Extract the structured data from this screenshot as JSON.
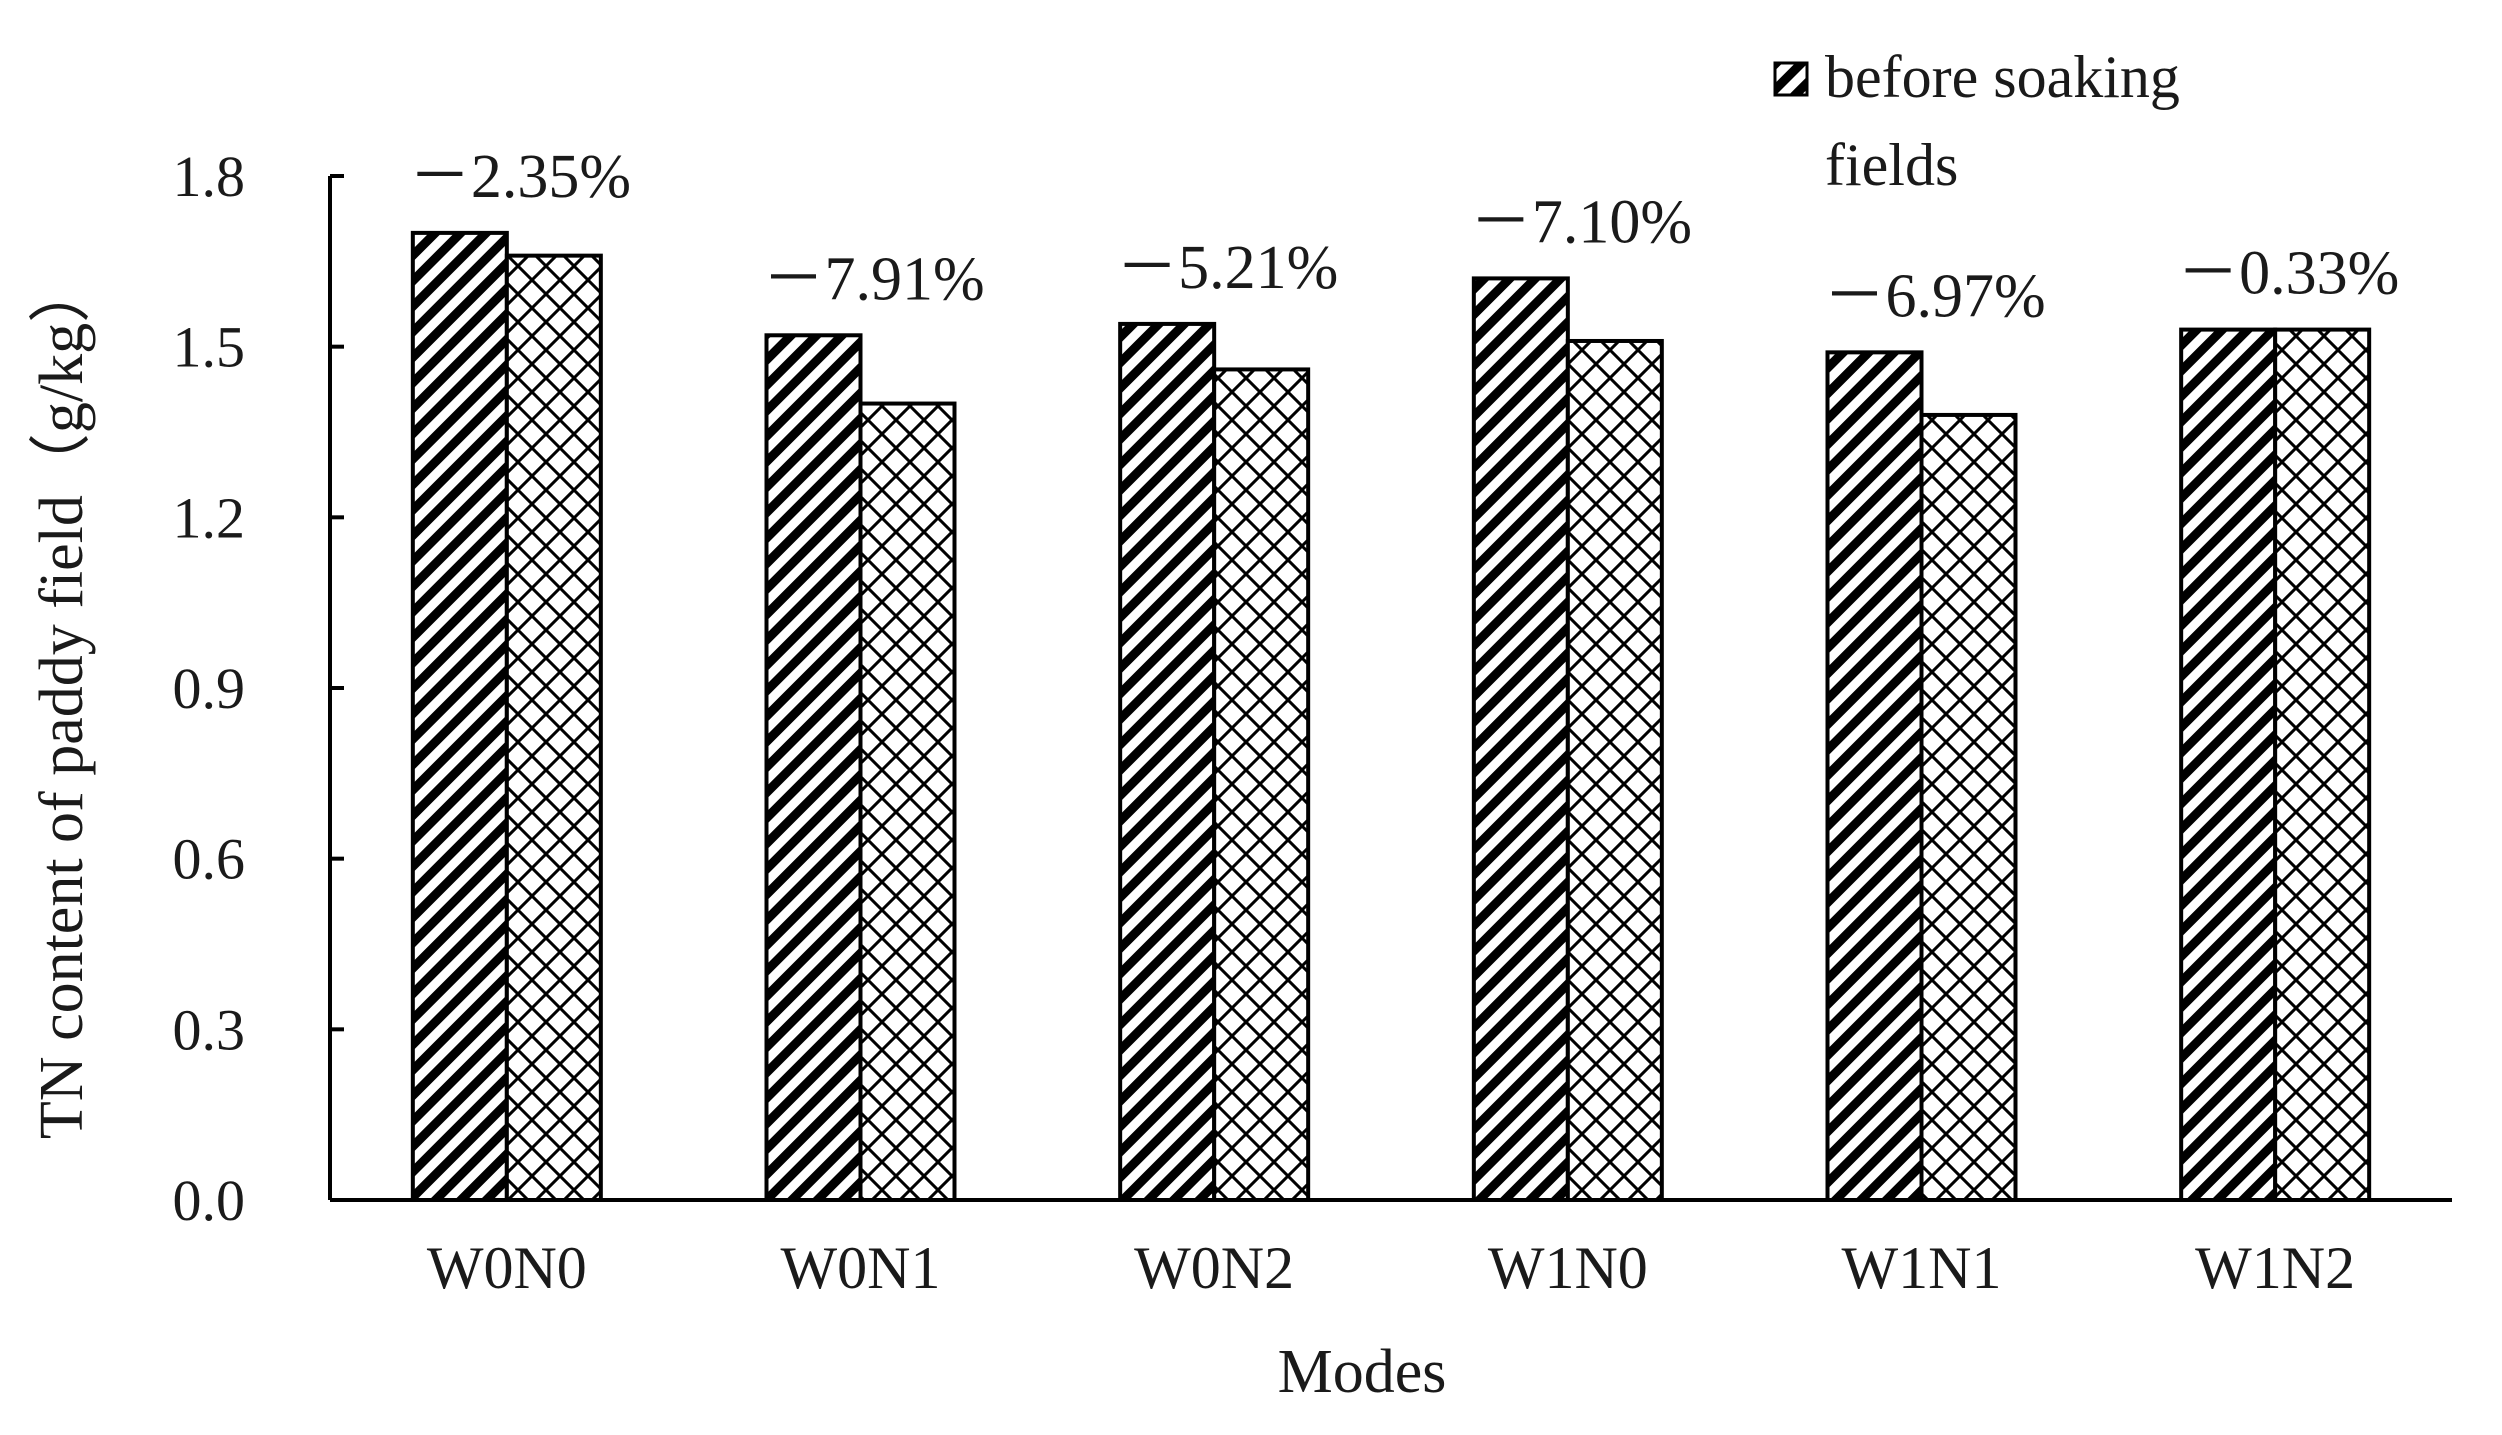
{
  "chart_data": {
    "type": "bar",
    "title": "",
    "xlabel": "Modes",
    "ylabel": "TN content of paddy field（g/kg）",
    "categories": [
      "W0N0",
      "W0N1",
      "W0N2",
      "W1N0",
      "W1N1",
      "W1N2"
    ],
    "series": [
      {
        "name": "before soaking fields",
        "values": [
          1.7,
          1.52,
          1.54,
          1.62,
          1.49,
          1.53
        ],
        "pattern": "diagonal-hatch"
      },
      {
        "values": [
          1.66,
          1.4,
          1.46,
          1.51,
          1.38,
          1.53
        ],
        "pattern": "diamond-crosshatch"
      }
    ],
    "data_labels": [
      "－2.35%",
      "－7.91%",
      "－5.21%",
      "－7.10%",
      "－6.97%",
      "－0.33%"
    ],
    "ylim": [
      0.0,
      1.8
    ],
    "yticks": [
      "0.0",
      "0.3",
      "0.6",
      "0.9",
      "1.2",
      "1.5",
      "1.8"
    ],
    "grid": false,
    "legend_position": "top-right",
    "colors": {
      "stroke": "#000000",
      "fill": "#ffffff"
    }
  }
}
